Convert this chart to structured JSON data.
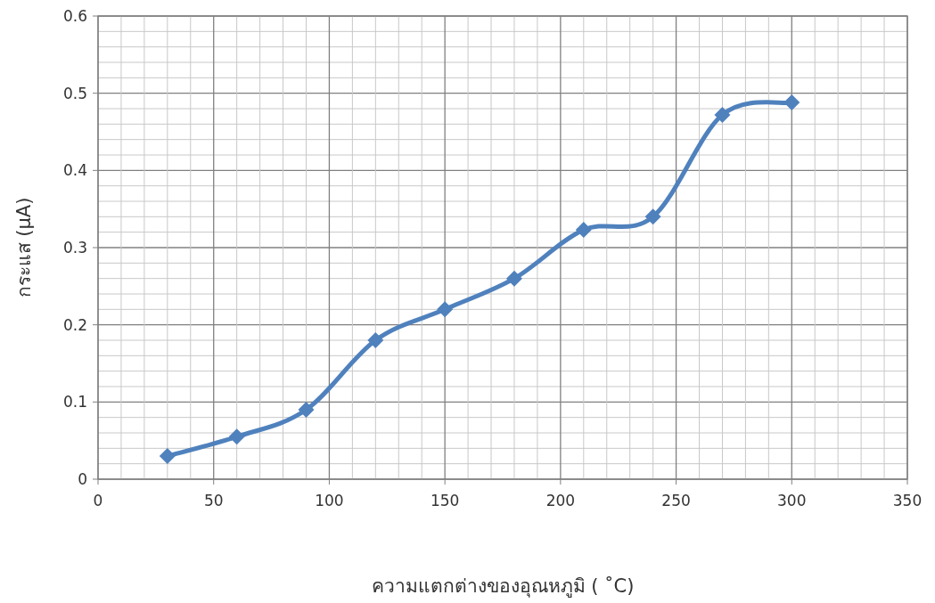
{
  "chart_data": {
    "type": "line",
    "xlabel": "ความแตกต่างของอุณหภูมิ ( ˚C)",
    "ylabel": "กระแส (µA)",
    "x": [
      30,
      60,
      90,
      120,
      150,
      180,
      210,
      240,
      270,
      300
    ],
    "series": [
      {
        "color": "#4f81bd",
        "values": [
          0.03,
          0.055,
          0.09,
          0.18,
          0.22,
          0.26,
          0.323,
          0.34,
          0.472,
          0.488
        ]
      }
    ],
    "xlim": [
      0,
      350
    ],
    "xticks": [
      0,
      50,
      100,
      150,
      200,
      250,
      300,
      350
    ],
    "ylim": [
      0,
      0.6
    ],
    "yticks": [
      0,
      0.1,
      0.2,
      0.3,
      0.4,
      0.5,
      0.6
    ],
    "grid": true,
    "marker": "diamond",
    "line_style": "solid"
  }
}
